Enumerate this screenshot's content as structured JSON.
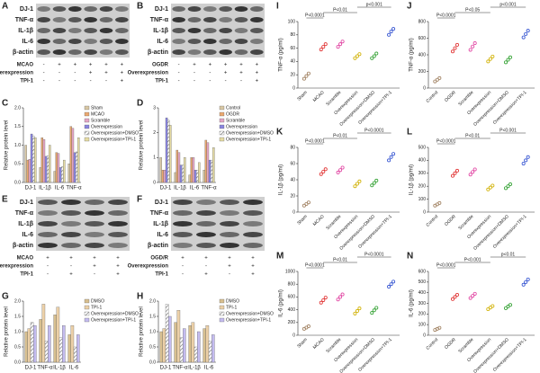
{
  "blots": [
    {
      "panel": "A",
      "bands": [
        "DJ-1",
        "TNF-α",
        "IL-1β",
        "IL-6",
        "β-actin"
      ],
      "conditions": [
        {
          "name": "MCAO",
          "signs": [
            "-",
            "+",
            "+",
            "+",
            "+",
            "+"
          ]
        },
        {
          "name": "Overexpression",
          "signs": [
            "-",
            "-",
            "-",
            "+",
            "+",
            "+"
          ]
        },
        {
          "name": "TPI-1",
          "signs": [
            "-",
            "-",
            "-",
            "-",
            "-",
            "+"
          ]
        }
      ]
    },
    {
      "panel": "B",
      "bands": [
        "DJ-1",
        "TNF-α",
        "IL-1β",
        "IL-6",
        "β-actin"
      ],
      "conditions": [
        {
          "name": "OGDR",
          "signs": [
            "-",
            "+",
            "+",
            "+",
            "+",
            "+"
          ]
        },
        {
          "name": "Overexpression",
          "signs": [
            "-",
            "-",
            "-",
            "+",
            "+",
            "+"
          ]
        },
        {
          "name": "TPI-1",
          "signs": [
            "-",
            "-",
            "-",
            "-",
            "-",
            "+"
          ]
        }
      ]
    },
    {
      "panel": "E",
      "bands": [
        "DJ-1",
        "TNF-α",
        "IL-1β",
        "IL-6",
        "β-actin"
      ],
      "conditions": [
        {
          "name": "MCAO",
          "signs": [
            "+",
            "+",
            "+",
            "+"
          ]
        },
        {
          "name": "Overexpression",
          "signs": [
            "-",
            "-",
            "+",
            "+"
          ]
        },
        {
          "name": "TPI-1",
          "signs": [
            "-",
            "+",
            "-",
            "+"
          ]
        }
      ]
    },
    {
      "panel": "F",
      "bands": [
        "DJ-1",
        "TNF-α",
        "IL-1β",
        "IL-6",
        "β-actin"
      ],
      "conditions": [
        {
          "name": "OGD/R",
          "signs": [
            "+",
            "+",
            "+",
            "+"
          ]
        },
        {
          "name": "Overexpression",
          "signs": [
            "-",
            "-",
            "+",
            "+"
          ]
        },
        {
          "name": "TPI-1",
          "signs": [
            "-",
            "+",
            "-",
            "+"
          ]
        }
      ]
    }
  ],
  "chart_data": [
    {
      "type": "bar",
      "panel": "C",
      "ylabel": "Relative protein level",
      "categories": [
        "DJ-1",
        "IL-1β",
        "IL-6",
        "TNF-α"
      ],
      "ylim": [
        0,
        2
      ],
      "yticks": [
        {
          "value": 0,
          "label": "0.0"
        },
        0.5,
        {
          "value": 1,
          "label": "1.0"
        },
        1.5,
        {
          "value": 2,
          "label": "2.0"
        }
      ],
      "series": [
        {
          "name": "Sham",
          "color": "#d9c8a4",
          "values": [
            1.0,
            0.4,
            0.3,
            0.5
          ]
        },
        {
          "name": "MCAO",
          "color": "#eaa870",
          "values": [
            0.6,
            1.2,
            0.8,
            1.5
          ]
        },
        {
          "name": "Scramble",
          "color": "#e4a6c6",
          "values": [
            0.62,
            1.15,
            0.78,
            1.45
          ]
        },
        {
          "name": "Overexpression",
          "color": "#8a86e0",
          "values": [
            1.3,
            0.7,
            0.4,
            0.8
          ]
        },
        {
          "name": "Overexpression+DMSO",
          "color": "#9a9a9a",
          "pattern": "hatch",
          "values": [
            1.25,
            0.72,
            0.42,
            0.82
          ]
        },
        {
          "name": "Overexpression+TPI-1",
          "color": "#e6dca4",
          "values": [
            1.2,
            1.0,
            0.6,
            1.2
          ]
        }
      ]
    },
    {
      "type": "bar",
      "panel": "D",
      "ylabel": "Relative protein level",
      "categories": [
        "DJ-1",
        "IL-1β",
        "IL-6",
        "TNF-α"
      ],
      "ylim": [
        0,
        3
      ],
      "yticks": [
        0,
        1,
        2,
        3
      ],
      "series": [
        {
          "name": "Control",
          "color": "#d9c8a4",
          "values": [
            1.0,
            0.4,
            0.3,
            0.5
          ]
        },
        {
          "name": "OGDR",
          "color": "#eaa870",
          "values": [
            0.5,
            1.3,
            1.0,
            1.7
          ]
        },
        {
          "name": "Scramble",
          "color": "#e4a6c6",
          "values": [
            0.5,
            1.2,
            1.0,
            1.6
          ]
        },
        {
          "name": "Overexpression",
          "color": "#8a86e0",
          "values": [
            2.6,
            0.7,
            0.5,
            0.9
          ]
        },
        {
          "name": "Overexpression+DMSO",
          "color": "#9a9a9a",
          "pattern": "hatch",
          "values": [
            2.5,
            0.7,
            0.5,
            0.9
          ]
        },
        {
          "name": "Overexpression+TPI-1",
          "color": "#e6dca4",
          "values": [
            2.3,
            1.0,
            0.8,
            1.4
          ]
        }
      ]
    },
    {
      "type": "bar",
      "panel": "G",
      "ylabel": "Relative protein level",
      "categories": [
        "DJ-1",
        "TNF-α",
        "IL-1β",
        "IL-6"
      ],
      "ylim": [
        0,
        2
      ],
      "yticks": [
        {
          "value": 0,
          "label": "0.0"
        },
        0.5,
        {
          "value": 1,
          "label": "1.0"
        },
        1.5,
        {
          "value": 2,
          "label": "2.0"
        }
      ],
      "series": [
        {
          "name": "DMSO",
          "color": "#d8c090",
          "values": [
            1.0,
            1.4,
            1.55,
            0.9
          ]
        },
        {
          "name": "TPI-1",
          "color": "#ecd0a8",
          "values": [
            1.1,
            1.9,
            1.8,
            1.2
          ]
        },
        {
          "name": "Overexpression+DMSO",
          "color": "#9a9a9a",
          "pattern": "hatch",
          "values": [
            1.3,
            0.7,
            0.8,
            0.5
          ]
        },
        {
          "name": "Overexpression+TPI-1",
          "color": "#c4bcf0",
          "values": [
            1.2,
            1.2,
            1.2,
            0.9
          ]
        }
      ]
    },
    {
      "type": "bar",
      "panel": "H",
      "ylabel": "Relative protein level",
      "categories": [
        "DJ-1",
        "TNF-α",
        "IL-1β",
        "IL-6"
      ],
      "ylim": [
        0,
        2
      ],
      "yticks": [
        {
          "value": 0,
          "label": "0.0"
        },
        0.5,
        {
          "value": 1,
          "label": "1.0"
        },
        1.5,
        {
          "value": 2,
          "label": "2.0"
        }
      ],
      "series": [
        {
          "name": "DMSO",
          "color": "#d8c090",
          "values": [
            1.0,
            1.3,
            1.2,
            1.1
          ]
        },
        {
          "name": "TPI-1",
          "color": "#ecd0a8",
          "values": [
            1.1,
            1.7,
            1.3,
            1.2
          ]
        },
        {
          "name": "Overexpression+DMSO",
          "color": "#9a9a9a",
          "pattern": "hatch",
          "values": [
            1.9,
            0.8,
            0.5,
            0.7
          ]
        },
        {
          "name": "Overexpression+TPI-1",
          "color": "#c4bcf0",
          "values": [
            1.5,
            1.1,
            1.0,
            0.9
          ]
        }
      ]
    },
    {
      "type": "dot",
      "panel": "I",
      "ylabel": "TNF-α (pg/ml)",
      "categories": [
        "Sham",
        "MCAO",
        "Scramble",
        "Overexpression",
        "Overexpression+DMSO",
        "Overexpression+TPI-1"
      ],
      "colors": [
        "#a08060",
        "#e03030",
        "#e040a0",
        "#d0b000",
        "#30a030",
        "#3050d0"
      ],
      "ylim": [
        0,
        100
      ],
      "yticks": [
        0,
        20,
        40,
        60,
        80,
        100
      ],
      "points": [
        [
          14,
          18,
          22
        ],
        [
          58,
          62,
          66
        ],
        [
          62,
          66,
          70
        ],
        [
          45,
          48,
          51
        ],
        [
          45,
          48,
          52
        ],
        [
          80,
          85,
          89
        ]
      ],
      "annotations": [
        "P<0.0001",
        "P<0.01",
        "p<0.001"
      ]
    },
    {
      "type": "dot",
      "panel": "J",
      "ylabel": "TNF-α (pg/ml)",
      "categories": [
        "Control",
        "OGDR",
        "Scramble",
        "Overexpression",
        "Overexpression+DMSO",
        "Overexpression+TPI-1"
      ],
      "colors": [
        "#a08060",
        "#e03030",
        "#e040a0",
        "#d0b000",
        "#30a030",
        "#3050d0"
      ],
      "ylim": [
        0,
        800
      ],
      "yticks": [
        0,
        200,
        400,
        600,
        800
      ],
      "points": [
        [
          80,
          100,
          120
        ],
        [
          440,
          480,
          520
        ],
        [
          460,
          500,
          540
        ],
        [
          320,
          350,
          380
        ],
        [
          310,
          340,
          370
        ],
        [
          610,
          650,
          690
        ]
      ],
      "annotations": [
        "P<0.0001",
        "P<0.05",
        "p<0.001"
      ]
    },
    {
      "type": "dot",
      "panel": "K",
      "ylabel": "IL-1β (pg/ml)",
      "categories": [
        "Sham",
        "MCAO",
        "Scramble",
        "Overexpression",
        "Overexpression+DMSO",
        "Overexpression+TPI-1"
      ],
      "colors": [
        "#a08060",
        "#e03030",
        "#e040a0",
        "#d0b000",
        "#30a030",
        "#3050d0"
      ],
      "ylim": [
        0,
        80
      ],
      "yticks": [
        0,
        20,
        40,
        60,
        80
      ],
      "points": [
        [
          8,
          10,
          12
        ],
        [
          47,
          50,
          53
        ],
        [
          49,
          52,
          55
        ],
        [
          32,
          35,
          38
        ],
        [
          33,
          36,
          39
        ],
        [
          64,
          68,
          72
        ]
      ],
      "annotations": [
        "P<0.0001",
        "P<0.01",
        "P<0.0001"
      ]
    },
    {
      "type": "dot",
      "panel": "L",
      "ylabel": "IL-1β (pg/ml)",
      "categories": [
        "Control",
        "OGDR",
        "Scramble",
        "Overexpression",
        "Overexpression+DMSO",
        "Overexpression+TPI-1"
      ],
      "colors": [
        "#a08060",
        "#e03030",
        "#e040a0",
        "#d0b000",
        "#30a030",
        "#3050d0"
      ],
      "ylim": [
        0,
        500
      ],
      "yticks": [
        0,
        100,
        200,
        300,
        400,
        500
      ],
      "points": [
        [
          50,
          60,
          70
        ],
        [
          280,
          300,
          320
        ],
        [
          290,
          310,
          330
        ],
        [
          175,
          190,
          205
        ],
        [
          185,
          200,
          215
        ],
        [
          375,
          400,
          425
        ]
      ],
      "annotations": [
        "P<0.0001",
        "P<0.01",
        "P<0.001"
      ]
    },
    {
      "type": "dot",
      "panel": "M",
      "ylabel": "IL-6 (pg/ml)",
      "categories": [
        "Sham",
        "MCAO",
        "Scramble",
        "Overexpression",
        "Overexpression+DMSO",
        "Overexpression+TPI-1"
      ],
      "colors": [
        "#a08060",
        "#e03030",
        "#e040a0",
        "#d0b000",
        "#30a030",
        "#3050d0"
      ],
      "ylim": [
        0,
        1000
      ],
      "yticks": [
        0,
        200,
        400,
        600,
        800,
        1000
      ],
      "points": [
        [
          100,
          120,
          140
        ],
        [
          510,
          550,
          590
        ],
        [
          560,
          600,
          640
        ],
        [
          340,
          380,
          420
        ],
        [
          350,
          390,
          430
        ],
        [
          760,
          800,
          840
        ]
      ],
      "annotations": [
        "P<0.0001",
        "P<0.01",
        "P<0.0001"
      ]
    },
    {
      "type": "dot",
      "panel": "N",
      "ylabel": "IL-6 (pg/ml)",
      "categories": [
        "Control",
        "OGDR",
        "Scramble",
        "Overexpression",
        "Overexpression+DMSO",
        "Overexpression+TPI-1"
      ],
      "colors": [
        "#a08060",
        "#e03030",
        "#e040a0",
        "#d0b000",
        "#30a030",
        "#3050d0"
      ],
      "ylim": [
        0,
        600
      ],
      "yticks": [
        0,
        100,
        200,
        300,
        400,
        500,
        600
      ],
      "points": [
        [
          50,
          60,
          70
        ],
        [
          340,
          360,
          380
        ],
        [
          350,
          370,
          390
        ],
        [
          245,
          260,
          275
        ],
        [
          255,
          270,
          285
        ],
        [
          475,
          500,
          525
        ]
      ],
      "annotations": [
        "P<0.0001",
        "P<0.001",
        "p<0.01"
      ]
    }
  ]
}
